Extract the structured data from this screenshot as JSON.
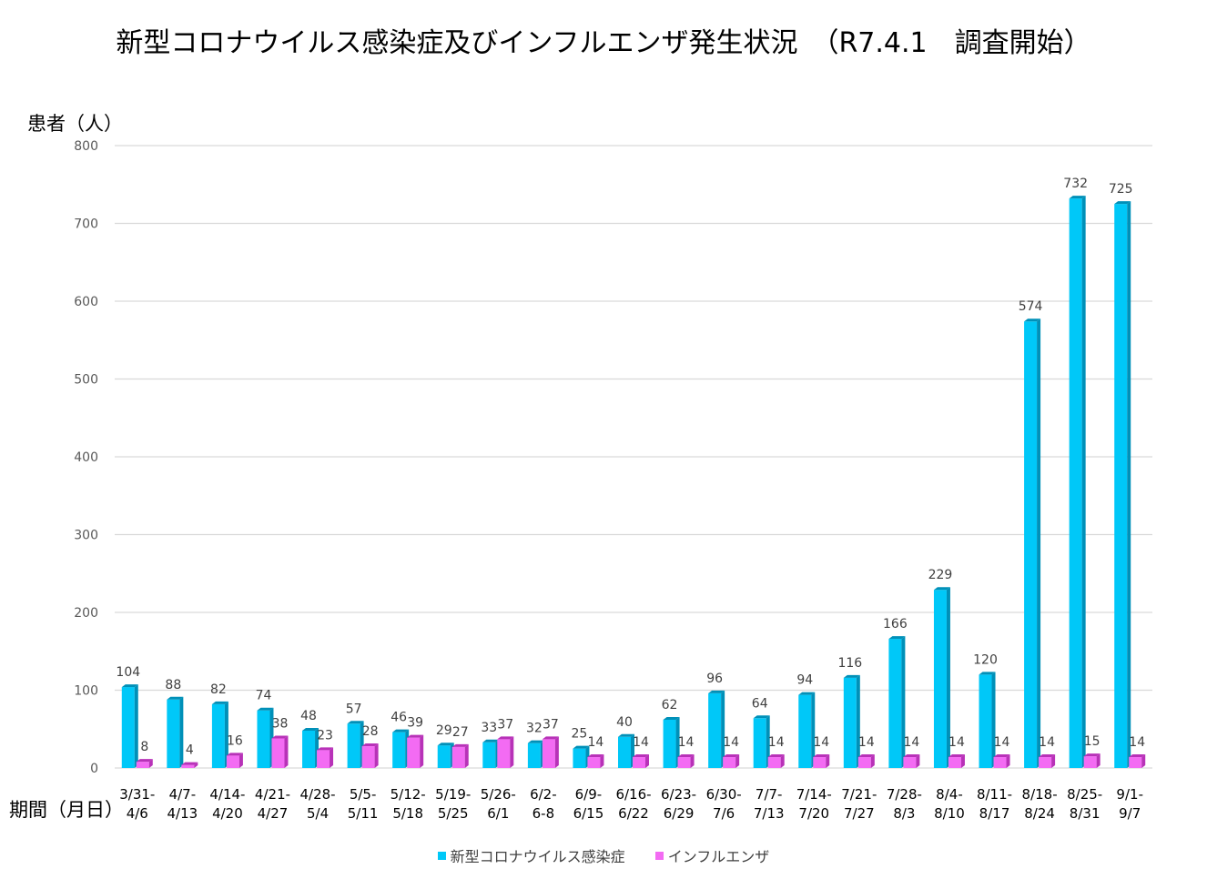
{
  "title": "新型コロナウイルス感染症及びインフルエンザ発生状況　（R7.4.1　調査開始）",
  "y_unit_label": "患者（人）",
  "x_unit_label": "期間（月日）",
  "colors": {
    "covid": "#00c8f8",
    "covid_side": "#0090b8",
    "flu": "#f36bf3",
    "flu_side": "#b832b8",
    "grid": "#d9d9d9"
  },
  "chart_data": {
    "type": "bar",
    "title": "新型コロナウイルス感染症及びインフルエンザ発生状況　（R7.4.1　調査開始）",
    "xlabel": "期間（月日）",
    "ylabel": "患者（人）",
    "ylim": [
      0,
      800
    ],
    "yticks": [
      "0",
      "100",
      "200",
      "300",
      "400",
      "500",
      "600",
      "700",
      "800"
    ],
    "grid": true,
    "legend": "bottom",
    "categories": [
      [
        "3/31-",
        "4/6"
      ],
      [
        "4/7-",
        "4/13"
      ],
      [
        "4/14-",
        "4/20"
      ],
      [
        "4/21-",
        "4/27"
      ],
      [
        "4/28-",
        "5/4"
      ],
      [
        "5/5-",
        "5/11"
      ],
      [
        "5/12-",
        "5/18"
      ],
      [
        "5/19-",
        "5/25"
      ],
      [
        "5/26-",
        "6/1"
      ],
      [
        "6/2-",
        "6-8"
      ],
      [
        "6/9-",
        "6/15"
      ],
      [
        "6/16-",
        "6/22"
      ],
      [
        "6/23-",
        "6/29"
      ],
      [
        "6/30-",
        "7/6"
      ],
      [
        "7/7-",
        "7/13"
      ],
      [
        "7/14-",
        "7/20"
      ],
      [
        "7/21-",
        "7/27"
      ],
      [
        "7/28-",
        "8/3"
      ],
      [
        "8/4-",
        "8/10"
      ],
      [
        "8/11-",
        "8/17"
      ],
      [
        "8/18-",
        "8/24"
      ],
      [
        "8/25-",
        "8/31"
      ],
      [
        "9/1-",
        "9/7"
      ]
    ],
    "series": [
      {
        "name": "新型コロナウイルス感染症",
        "values": [
          104,
          88,
          82,
          74,
          48,
          57,
          46,
          29,
          33,
          32,
          25,
          40,
          62,
          96,
          64,
          94,
          116,
          166,
          229,
          120,
          574,
          732,
          725
        ]
      },
      {
        "name": "インフルエンザ",
        "values": [
          8,
          4,
          16,
          38,
          23,
          28,
          39,
          27,
          37,
          37,
          14,
          14,
          14,
          14,
          14,
          14,
          14,
          14,
          14,
          14,
          14,
          15,
          14
        ]
      }
    ]
  }
}
